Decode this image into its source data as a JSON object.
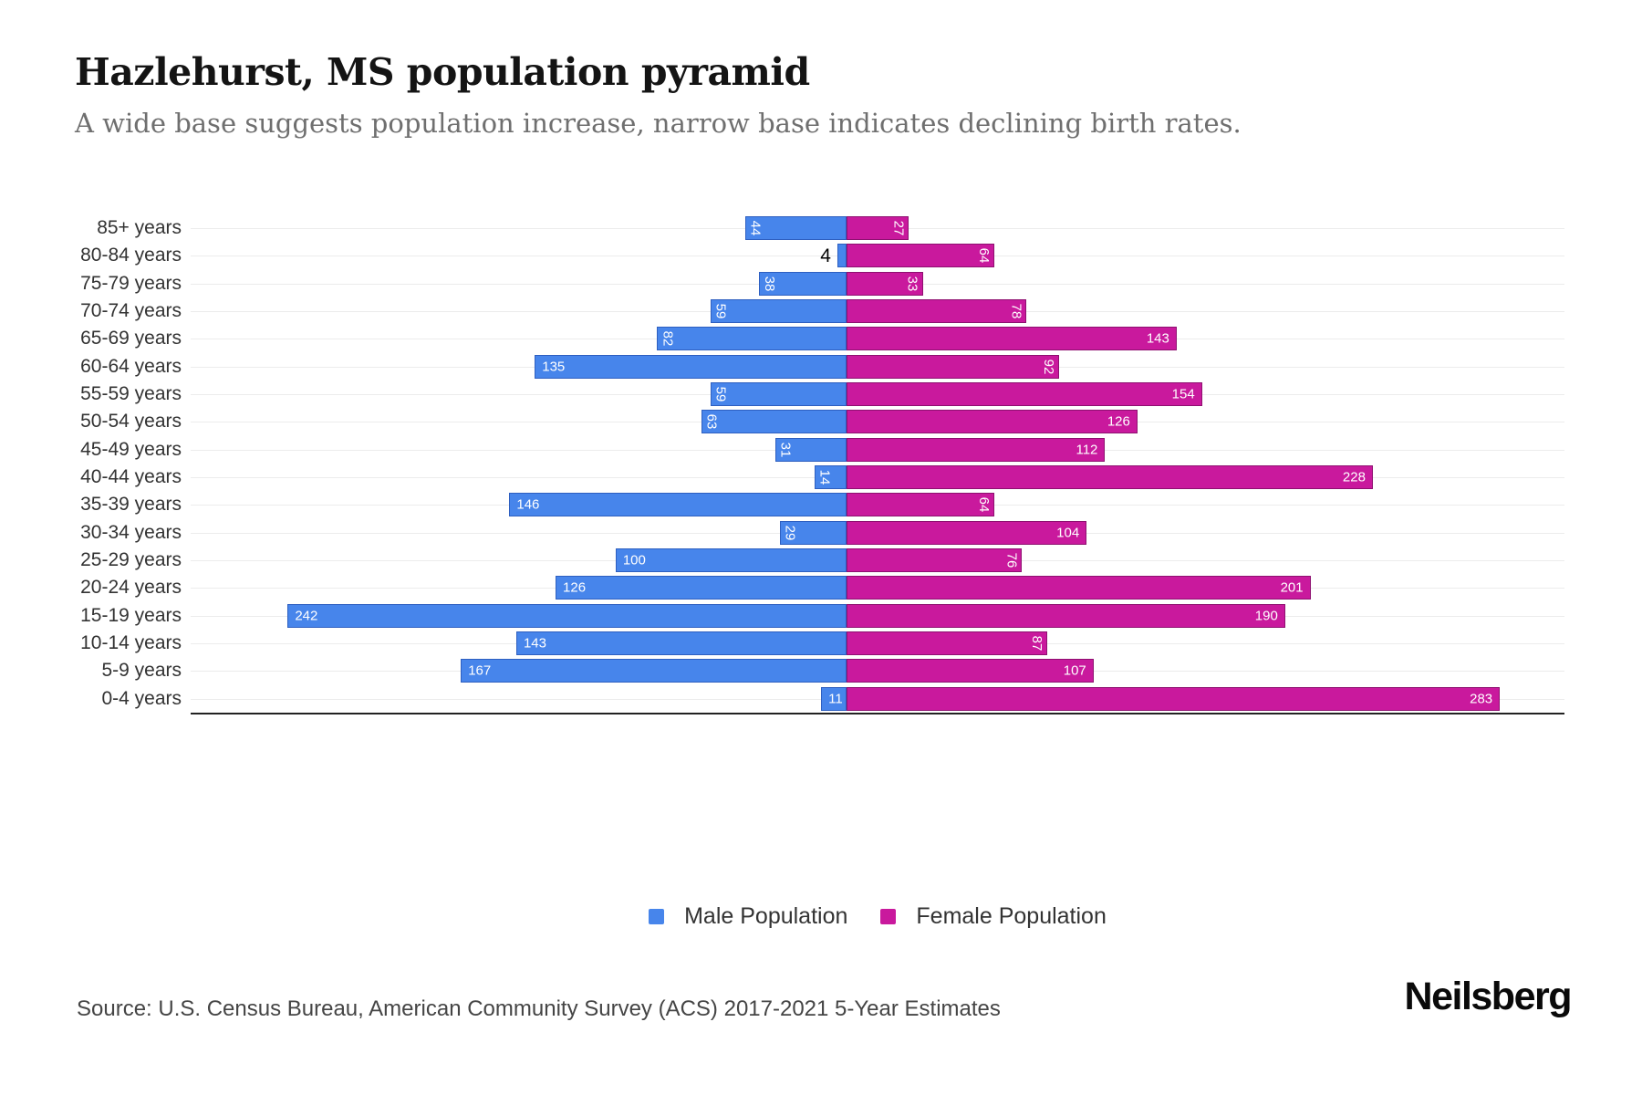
{
  "header": {
    "title": "Hazlehurst, MS population pyramid",
    "subtitle": "A wide base suggests population increase, narrow base indicates declining birth rates."
  },
  "colors": {
    "male": "#4785EB",
    "male_border": "#2e5fc0",
    "female": "#C9199D",
    "female_border": "#8e1070"
  },
  "chart_data": {
    "type": "bar",
    "variant": "population-pyramid",
    "title": "Hazlehurst, MS population pyramid",
    "categories": [
      "85+ years",
      "80-84 years",
      "75-79 years",
      "70-74 years",
      "65-69 years",
      "60-64 years",
      "55-59 years",
      "50-54 years",
      "45-49 years",
      "40-44 years",
      "35-39 years",
      "30-34 years",
      "25-29 years",
      "20-24 years",
      "15-19 years",
      "10-14 years",
      "5-9 years",
      "0-4 years"
    ],
    "series": [
      {
        "name": "Male Population",
        "side": "left",
        "values": [
          44,
          4,
          38,
          59,
          82,
          135,
          59,
          63,
          31,
          14,
          146,
          29,
          100,
          126,
          242,
          143,
          167,
          11
        ],
        "label_orientation": [
          "vertical",
          "outside",
          "vertical",
          "vertical",
          "vertical",
          "horizontal",
          "vertical",
          "vertical",
          "vertical",
          "vertical",
          "horizontal",
          "vertical",
          "horizontal",
          "horizontal",
          "horizontal",
          "horizontal",
          "horizontal",
          "horizontal"
        ]
      },
      {
        "name": "Female Population",
        "side": "right",
        "values": [
          27,
          64,
          33,
          78,
          143,
          92,
          154,
          126,
          112,
          228,
          64,
          104,
          76,
          201,
          190,
          87,
          107,
          283
        ],
        "label_orientation": [
          "vertical",
          "vertical",
          "vertical",
          "vertical",
          "horizontal",
          "vertical",
          "horizontal",
          "horizontal",
          "horizontal",
          "horizontal",
          "vertical",
          "horizontal",
          "vertical",
          "horizontal",
          "horizontal",
          "vertical",
          "horizontal",
          "horizontal"
        ]
      }
    ],
    "axis": {
      "male_axis_max": 284,
      "female_axis_max": 311
    },
    "grid": "row-center-lines",
    "legend_position": "bottom-center"
  },
  "legend": {
    "male_label": "Male Population",
    "female_label": "Female Population"
  },
  "footer": {
    "source": "Source: U.S. Census Bureau, American Community Survey (ACS) 2017-2021 5-Year Estimates",
    "brand": "Neilsberg"
  }
}
